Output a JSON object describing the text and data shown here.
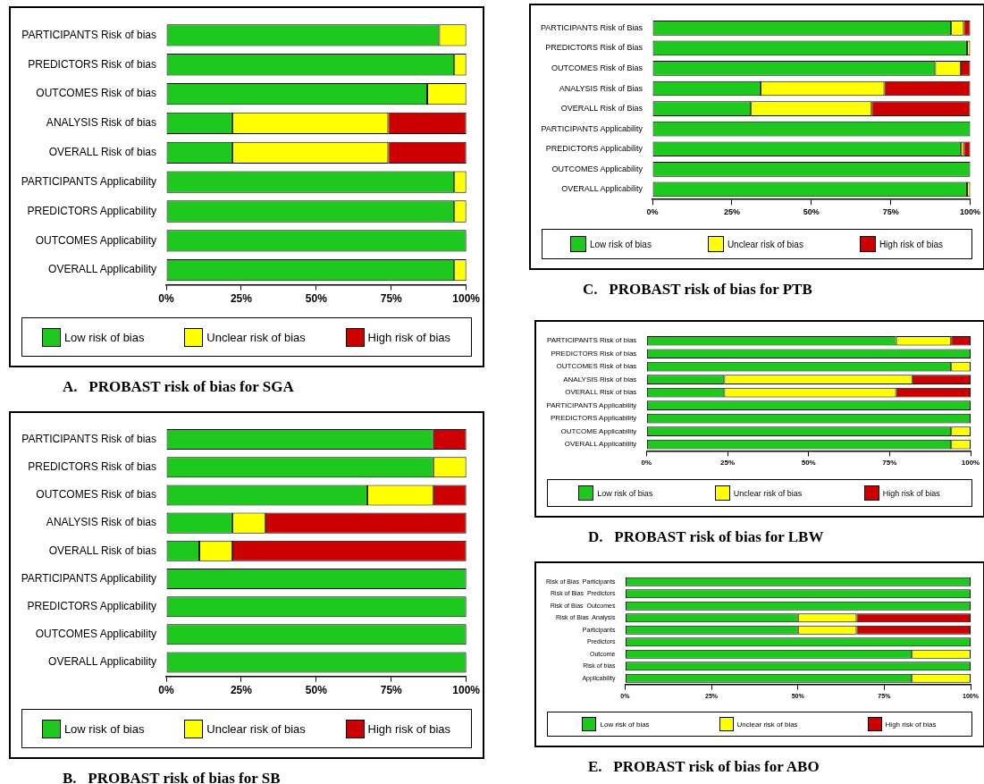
{
  "chart_data": [
    {
      "type": "bar",
      "orientation": "horizontal",
      "stacked": true,
      "title": "A.   PROBAST risk of bias for SGA",
      "categories": [
        "PARTICIPANTS Risk of bias",
        "PREDICTORS Risk of bias",
        "OUTCOMES Risk of bias",
        "ANALYSIS Risk of bias",
        "OVERALL Risk of bias",
        "PARTICIPANTS Applicability",
        "PREDICTORS Applicability",
        "OUTCOMES Applicability",
        "OVERALL Applicability"
      ],
      "xlim": [
        0,
        100
      ],
      "xticks": [
        {
          "value": 0,
          "label": "0%"
        },
        {
          "value": 25,
          "label": "25%"
        },
        {
          "value": 50,
          "label": "50%"
        },
        {
          "value": 75,
          "label": "75%"
        },
        {
          "value": 100,
          "label": "100%"
        }
      ],
      "legend": "bottom",
      "series": [
        {
          "name": "Low risk of bias",
          "color": "#1ec81e",
          "values": [
            91,
            96,
            87,
            22,
            22,
            96,
            96,
            100,
            96
          ]
        },
        {
          "name": "Unclear risk of bias",
          "color": "#ffff00",
          "values": [
            9,
            4,
            13,
            52,
            52,
            4,
            4,
            0,
            4
          ]
        },
        {
          "name": "High risk of bias",
          "color": "#cc0000",
          "values": [
            0,
            0,
            0,
            26,
            26,
            0,
            0,
            0,
            0
          ]
        }
      ]
    },
    {
      "type": "bar",
      "orientation": "horizontal",
      "stacked": true,
      "title": "B.   PROBAST risk of bias for SB",
      "categories": [
        "PARTICIPANTS Risk of bias",
        "PREDICTORS Risk of bias",
        "OUTCOMES Risk of bias",
        "ANALYSIS Risk of bias",
        "OVERALL Risk of bias",
        "PARTICIPANTS Applicability",
        "PREDICTORS Applicability",
        "OUTCOMES Applicability",
        "OVERALL Applicability"
      ],
      "xlim": [
        0,
        100
      ],
      "xticks": [
        {
          "value": 0,
          "label": "0%"
        },
        {
          "value": 25,
          "label": "25%"
        },
        {
          "value": 50,
          "label": "50%"
        },
        {
          "value": 75,
          "label": "75%"
        },
        {
          "value": 100,
          "label": "100%"
        }
      ],
      "legend": "bottom",
      "series": [
        {
          "name": "Low risk of bias",
          "color": "#1ec81e",
          "values": [
            89,
            89,
            67,
            22,
            11,
            100,
            100,
            100,
            100
          ]
        },
        {
          "name": "Unclear risk of bias",
          "color": "#ffff00",
          "values": [
            0,
            11,
            22,
            11,
            11,
            0,
            0,
            0,
            0
          ]
        },
        {
          "name": "High risk of bias",
          "color": "#cc0000",
          "values": [
            11,
            0,
            11,
            67,
            78,
            0,
            0,
            0,
            0
          ]
        }
      ]
    },
    {
      "type": "bar",
      "orientation": "horizontal",
      "stacked": true,
      "title": "C.   PROBAST risk of bias for PTB",
      "categories": [
        "PARTICIPANTS Risk of Bias",
        "PREDICTORS Risk of Bias",
        "OUTCOMES Risk of Bias",
        "ANALYSIS Risk of Bias",
        "OVERALL Risk of Bias",
        "PARTICIPANTS Applicability",
        "PREDICTORS Applicability",
        "OUTCOMES Applicability",
        "OVERALL Applicability"
      ],
      "xlim": [
        0,
        100
      ],
      "xticks": [
        {
          "value": 0,
          "label": "0%"
        },
        {
          "value": 25,
          "label": "25%"
        },
        {
          "value": 50,
          "label": "50%"
        },
        {
          "value": 75,
          "label": "75%"
        },
        {
          "value": 100,
          "label": "100%"
        }
      ],
      "legend": "bottom",
      "series": [
        {
          "name": "Low risk of bias",
          "color": "#1ec81e",
          "values": [
            94,
            99,
            89,
            34,
            31,
            100,
            97,
            100,
            99
          ]
        },
        {
          "name": "Unclear risk of bias",
          "color": "#ffff00",
          "values": [
            4,
            1,
            8,
            39,
            38,
            0,
            1,
            0,
            1
          ]
        },
        {
          "name": "High risk of bias",
          "color": "#cc0000",
          "values": [
            2,
            0,
            3,
            27,
            31,
            0,
            2,
            0,
            0
          ]
        }
      ]
    },
    {
      "type": "bar",
      "orientation": "horizontal",
      "stacked": true,
      "title": "D.   PROBAST risk of bias for LBW",
      "categories": [
        "PARTICIPANTS Risk of bias",
        "PREDICTORS Risk of bias",
        "OUTCOMES Risk of bias",
        "ANALYSIS Risk of bias",
        "OVERALL Risk of bias",
        "PARTICIPANTS Applicability",
        "PREDICTORS Applicability",
        "OUTCOME Applicability",
        "OVERALL Applicability"
      ],
      "xlim": [
        0,
        100
      ],
      "xticks": [
        {
          "value": 0,
          "label": "0%"
        },
        {
          "value": 25,
          "label": "25%"
        },
        {
          "value": 50,
          "label": "50%"
        },
        {
          "value": 75,
          "label": "75%"
        },
        {
          "value": 100,
          "label": "100%"
        }
      ],
      "legend": "bottom",
      "series": [
        {
          "name": "Low risk of bias",
          "color": "#1ec81e",
          "values": [
            77,
            100,
            94,
            24,
            24,
            100,
            100,
            94,
            94
          ]
        },
        {
          "name": "Unclear risk of bias",
          "color": "#ffff00",
          "values": [
            17,
            0,
            6,
            58,
            53,
            0,
            0,
            6,
            6
          ]
        },
        {
          "name": "High risk of bias",
          "color": "#cc0000",
          "values": [
            6,
            0,
            0,
            18,
            23,
            0,
            0,
            0,
            0
          ]
        }
      ]
    },
    {
      "type": "bar",
      "orientation": "horizontal",
      "stacked": true,
      "title": "E.   PROBAST risk of bias for ABO",
      "categories": [
        "Risk of Bias  Participants",
        "Risk of Bias  Predictors",
        "Risk of Bias  Outcomes",
        "Risk of Bias  Analysis",
        "Participants",
        "Predictors",
        "Outcome",
        "Risk of bias",
        "Applicability"
      ],
      "xlim": [
        0,
        100
      ],
      "xticks": [
        {
          "value": 0,
          "label": "0%"
        },
        {
          "value": 25,
          "label": "25%"
        },
        {
          "value": 50,
          "label": "50%"
        },
        {
          "value": 75,
          "label": "75%"
        },
        {
          "value": 100,
          "label": "100%"
        }
      ],
      "legend": "bottom",
      "series": [
        {
          "name": "Low risk of bias",
          "color": "#1ec81e",
          "values": [
            100,
            100,
            100,
            50,
            50,
            100,
            83,
            100,
            83
          ]
        },
        {
          "name": "Unclear risk of bias",
          "color": "#ffff00",
          "values": [
            0,
            0,
            0,
            17,
            17,
            0,
            17,
            0,
            17
          ]
        },
        {
          "name": "High risk of bias",
          "color": "#cc0000",
          "values": [
            0,
            0,
            0,
            33,
            33,
            0,
            0,
            0,
            0
          ]
        }
      ]
    }
  ]
}
